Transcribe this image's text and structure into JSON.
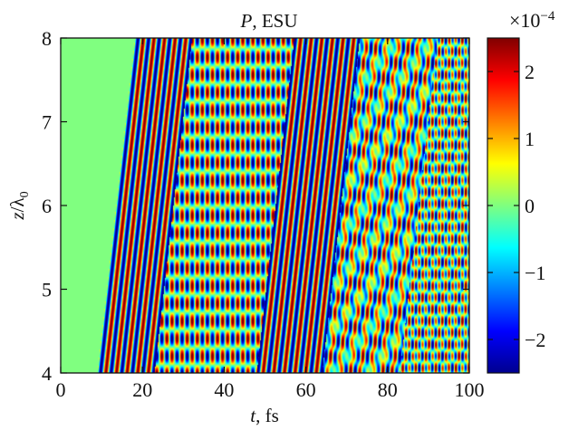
{
  "chart_data": {
    "type": "heatmap",
    "title": "P, ESU",
    "xlabel": "t, fs",
    "ylabel": "z/λ0",
    "xlim": [
      0,
      100
    ],
    "ylim": [
      4,
      8
    ],
    "x_ticks": [
      "0",
      "20",
      "40",
      "60",
      "80",
      "100"
    ],
    "y_ticks": [
      "4",
      "5",
      "6",
      "7",
      "8"
    ],
    "colorbar": {
      "scale_label": "×10−4",
      "range": [
        -2.5,
        2.5
      ],
      "ticks": [
        "−2",
        "−1",
        "0",
        "1",
        "2"
      ],
      "colormap": "jet"
    },
    "regions": [
      {
        "t_start_at_z4": 0,
        "t_end_at_z4": 9,
        "t_end_at_z8": 18,
        "pattern": "zero field (value 0)"
      },
      {
        "t_start_at_z4": 9,
        "t_end_at_z4": 23,
        "pattern": "diagonal stripes, slope dt/dz ≈ 2.3 fs per λ0"
      },
      {
        "t_start_at_z4": 23,
        "t_end_at_z4": 48,
        "pattern": "standing-wave checkerboard"
      },
      {
        "t_start_at_z4": 48,
        "t_end_at_z4": 64,
        "pattern": "diagonal stripes"
      },
      {
        "t_start_at_z4": 64,
        "t_end_at_z4": 83,
        "pattern": "mixed checkerboard with diagonal stripes"
      },
      {
        "t_start_at_z4": 83,
        "t_end_at_z4": 100,
        "pattern": "fine checkerboard"
      }
    ]
  },
  "labels": {
    "title_italic": "P",
    "title_rest": ", ESU",
    "xlabel_italic": "t",
    "xlabel_rest": ", fs",
    "ylabel_italic": "z",
    "ylabel_slash": "/λ",
    "ylabel_sub": "0",
    "cb_times": "×10",
    "cb_exp": "−4"
  }
}
